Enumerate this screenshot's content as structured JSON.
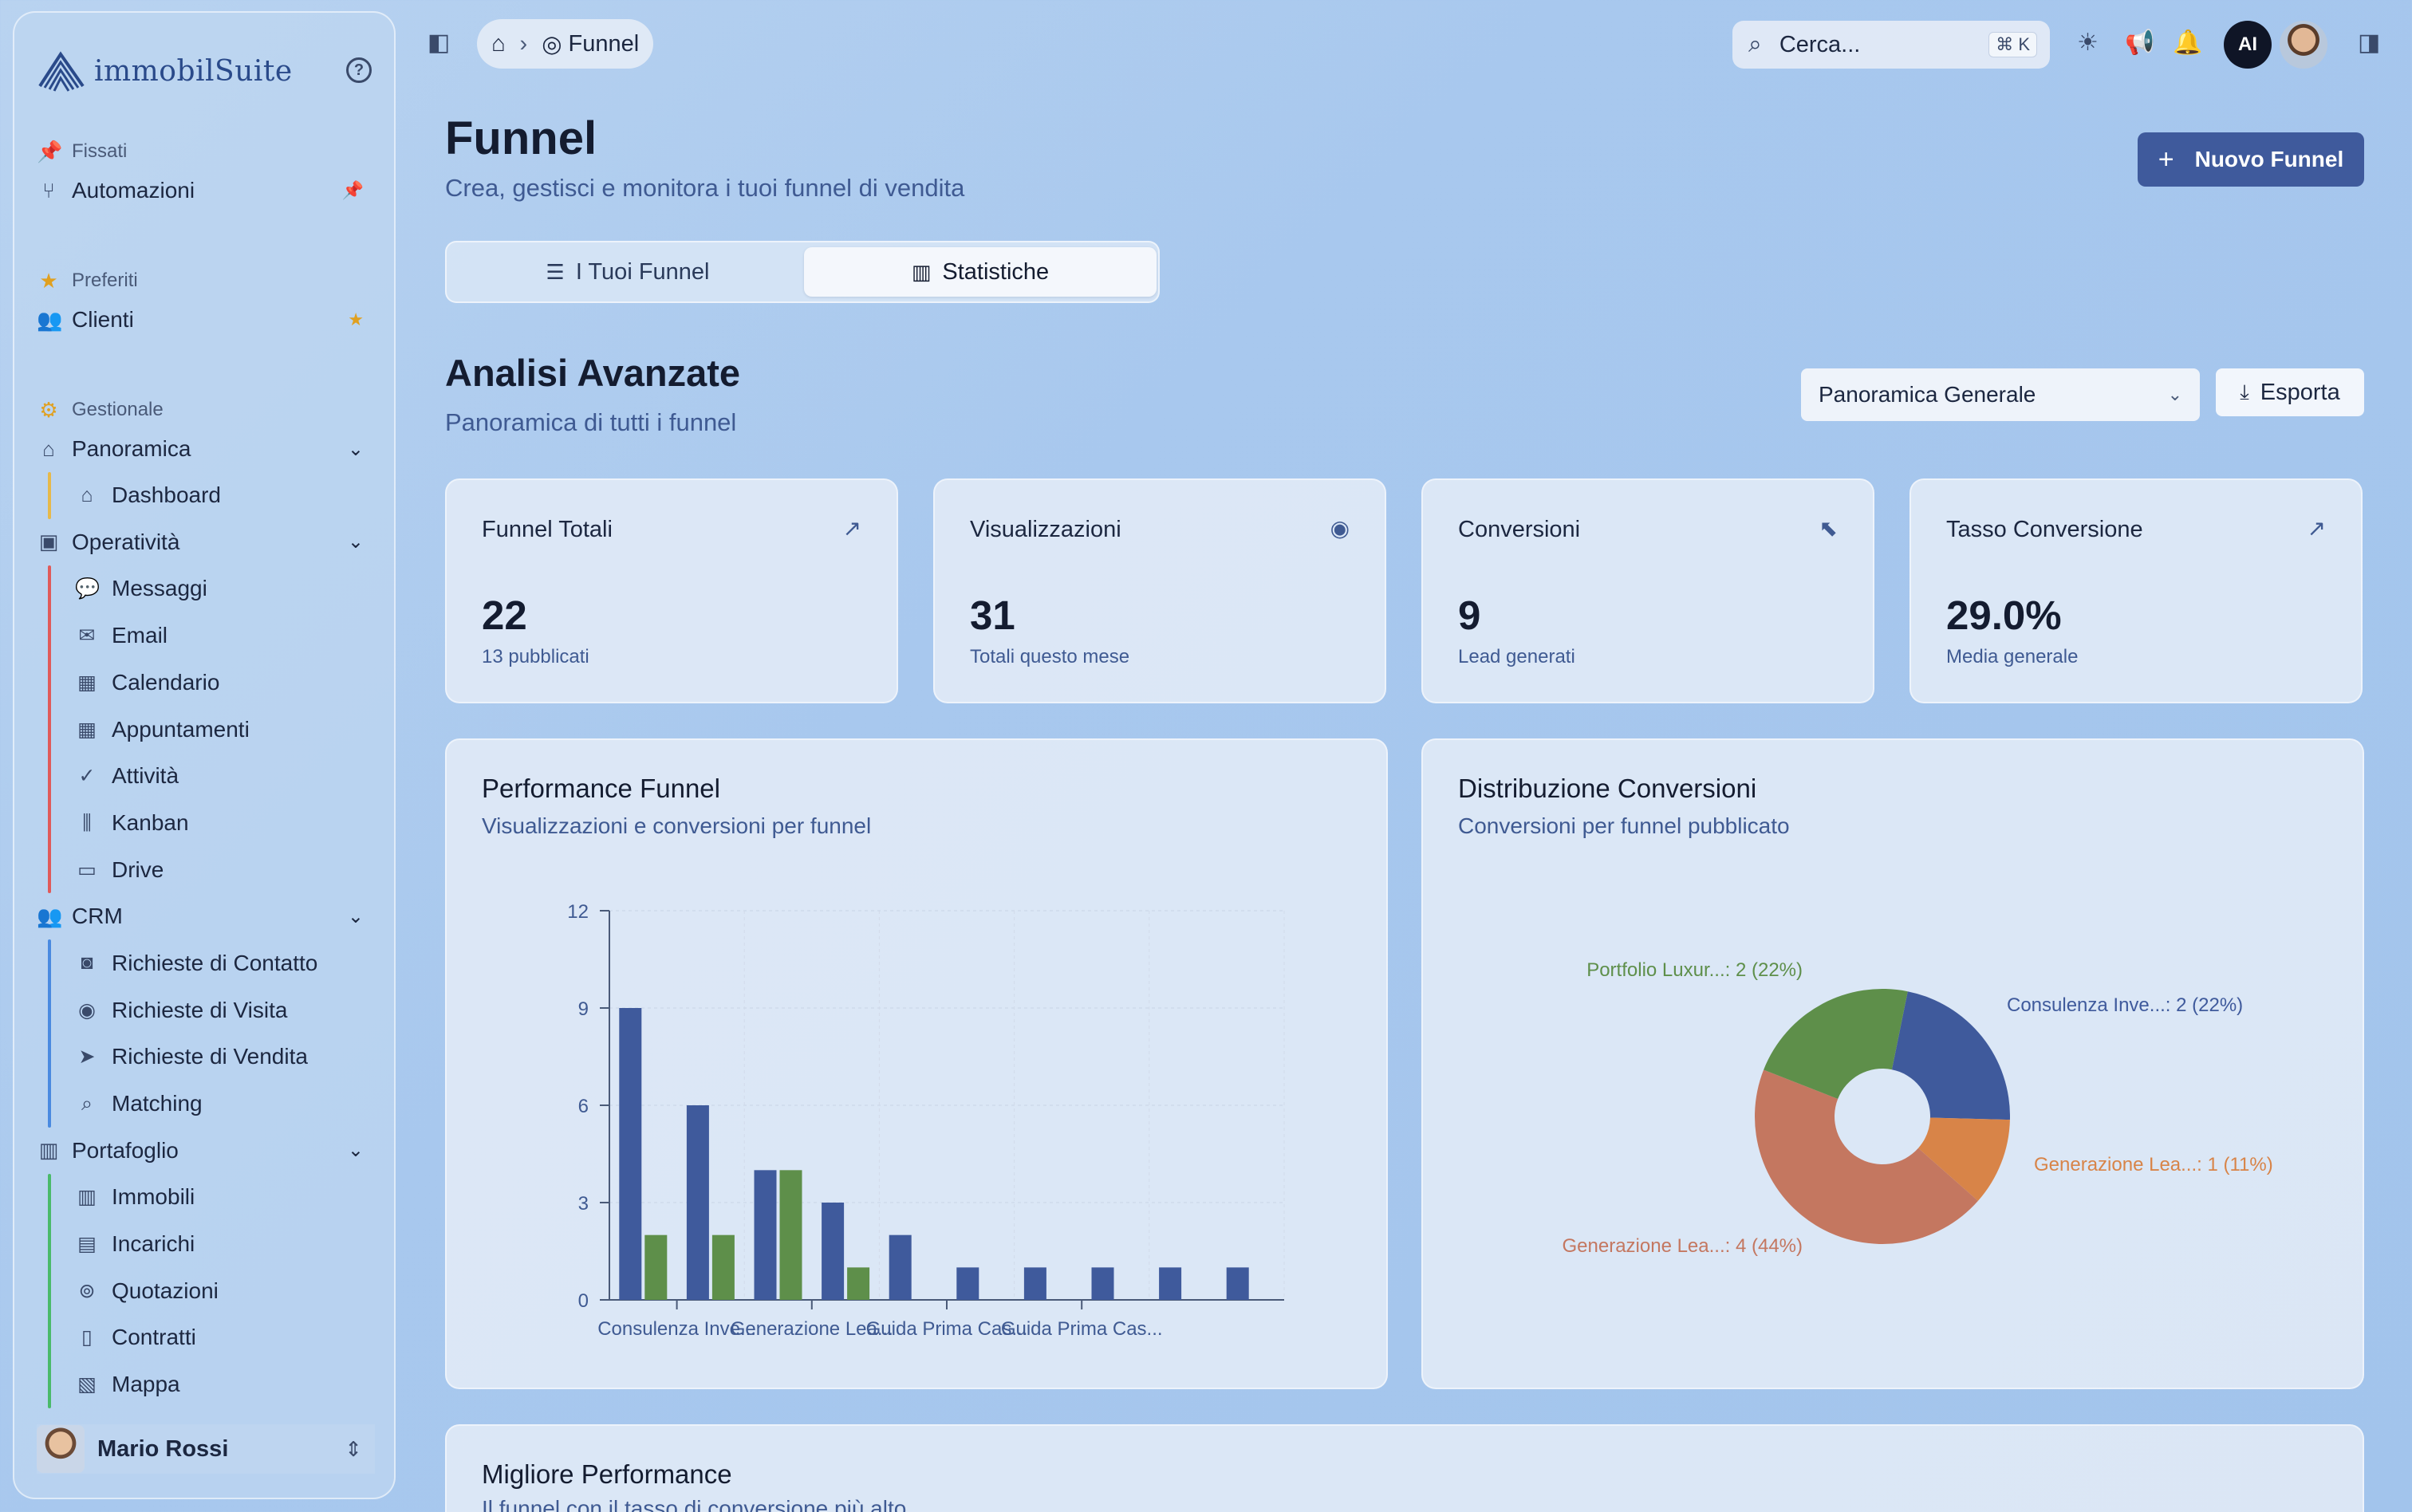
{
  "sidebar": {
    "logo": "immobilSuite",
    "pinned": {
      "title": "Fissati",
      "items": [
        {
          "label": "Automazioni"
        }
      ]
    },
    "favorites": {
      "title": "Preferiti",
      "items": [
        {
          "label": "Clienti"
        }
      ]
    },
    "management": {
      "title": "Gestionale",
      "groups": [
        {
          "label": "Panoramica",
          "items": [
            "Dashboard"
          ]
        },
        {
          "label": "Operatività",
          "items": [
            "Messaggi",
            "Email",
            "Calendario",
            "Appuntamenti",
            "Attività",
            "Kanban",
            "Drive"
          ]
        },
        {
          "label": "CRM",
          "items": [
            "Richieste di Contatto",
            "Richieste di Visita",
            "Richieste di Vendita",
            "Matching"
          ]
        },
        {
          "label": "Portafoglio",
          "items": [
            "Immobili",
            "Incarichi",
            "Quotazioni",
            "Contratti",
            "Mappa"
          ]
        }
      ]
    },
    "user": {
      "name": "Mario Rossi"
    }
  },
  "topbar": {
    "breadcrumb_current": "Funnel",
    "search_placeholder": "Cerca...",
    "search_shortcut": "⌘ K",
    "ai_avatar": "AI"
  },
  "page": {
    "title": "Funnel",
    "subtitle": "Crea, gestisci e monitora i tuoi funnel di vendita",
    "new_button": "Nuovo Funnel",
    "tabs": [
      "I Tuoi Funnel",
      "Statistiche"
    ],
    "active_tab": 1,
    "section_title": "Analisi Avanzate",
    "section_subtitle": "Panoramica di tutti i funnel",
    "filter_select": "Panoramica Generale",
    "export_button": "Esporta"
  },
  "stats": [
    {
      "title": "Funnel Totali",
      "value": "22",
      "desc": "13 pubblicati",
      "icon": "trending-up-icon"
    },
    {
      "title": "Visualizzazioni",
      "value": "31",
      "desc": "Totali questo mese",
      "icon": "eye-icon"
    },
    {
      "title": "Conversioni",
      "value": "9",
      "desc": "Lead generati",
      "icon": "cursor-click-icon"
    },
    {
      "title": "Tasso Conversione",
      "value": "29.0%",
      "desc": "Media generale",
      "icon": "trending-up-icon"
    }
  ],
  "performance_panel": {
    "title": "Performance Funnel",
    "subtitle": "Visualizzazioni e conversioni per funnel"
  },
  "distribution_panel": {
    "title": "Distribuzione Conversioni",
    "subtitle": "Conversioni per funnel pubblicato"
  },
  "best_panel": {
    "title": "Migliore Performance",
    "subtitle": "Il funnel con il tasso di conversione più alto"
  },
  "colors": {
    "accent": "#3f5a9c",
    "views": "#3f5a9c",
    "conversions": "#5e8f4a",
    "pie_blue": "#3f5a9c",
    "pie_orange": "#d88448",
    "pie_salmon": "#c47760",
    "pie_green": "#5e8f4a"
  },
  "chart_data": [
    {
      "type": "bar",
      "categories": [
        "Consulenza Inve...",
        "",
        "Generazione Lea...",
        "",
        "Guida Prima Cas...",
        "",
        "Guida Prima Cas...",
        "",
        "",
        ""
      ],
      "series": [
        {
          "values": [
            9,
            6,
            4,
            3,
            2,
            1,
            1,
            1,
            1,
            1
          ]
        },
        {
          "values": [
            2,
            2,
            4,
            1,
            0,
            0,
            0,
            0,
            0,
            0
          ]
        }
      ],
      "yticks": [
        0,
        3,
        6,
        9,
        12
      ],
      "ylim": [
        0,
        12
      ],
      "grid": true
    },
    {
      "type": "pie",
      "donut": true,
      "slices": [
        {
          "label": "Consulenza Inve...: 2 (22%)",
          "value": 2,
          "color": "#3f5a9c"
        },
        {
          "label": "Generazione Lea...: 1 (11%)",
          "value": 1,
          "color": "#d88448"
        },
        {
          "label": "Generazione Lea...: 4 (44%)",
          "value": 4,
          "color": "#c47760"
        },
        {
          "label": "Portfolio Luxur...: 2 (22%)",
          "value": 2,
          "color": "#5e8f4a"
        }
      ]
    }
  ]
}
